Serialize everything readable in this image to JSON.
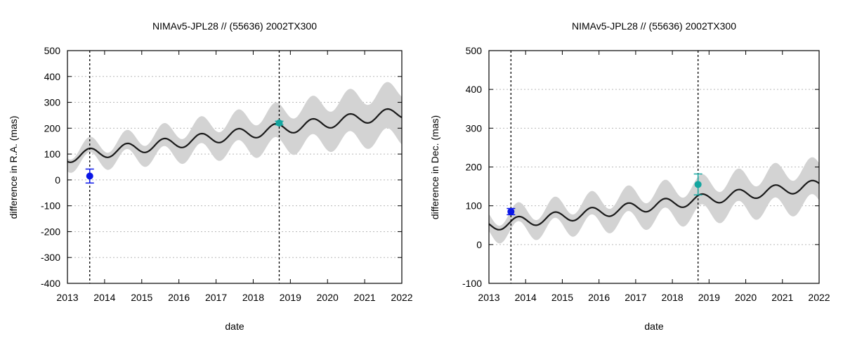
{
  "chart_data": [
    {
      "type": "line",
      "title": "NIMAv5-JPL28 // (55636) 2002TX300",
      "xlabel": "date",
      "ylabel": "difference in R.A. (mas)",
      "xlim": [
        2013,
        2022
      ],
      "ylim": [
        -400,
        500
      ],
      "xticks": [
        2013,
        2014,
        2015,
        2016,
        2017,
        2018,
        2019,
        2020,
        2021,
        2022
      ],
      "yticks": [
        -400,
        -300,
        -200,
        -100,
        0,
        100,
        200,
        300,
        400,
        500
      ],
      "grid": "horizontal-dotted",
      "vlines": [
        2013.6,
        2018.7
      ],
      "series": [
        {
          "name": "NIMAv5 - JPL28 difference",
          "style": "line",
          "color": "#1a1a1a",
          "model": {
            "offset": 100,
            "trend": 19,
            "t0": 2013.6,
            "amplitude": 22,
            "period": 1.0,
            "phase_peak": 2013.6
          }
        },
        {
          "name": "uncertainty band",
          "style": "band",
          "color": "#d3d3d3",
          "model": {
            "halfwidth_start": 25,
            "halfwidth_end": 92,
            "amplitude_scale": 1.7
          }
        }
      ],
      "points": [
        {
          "x": 2013.6,
          "y": 15,
          "err": 27,
          "color": "#0a16e6"
        },
        {
          "x": 2018.7,
          "y": 220,
          "err": 7,
          "color": "#14a6a0"
        }
      ]
    },
    {
      "type": "line",
      "title": "NIMAv5-JPL28 // (55636) 2002TX300",
      "xlabel": "date",
      "ylabel": "difference in Dec. (mas)",
      "xlim": [
        2013,
        2022
      ],
      "ylim": [
        -100,
        500
      ],
      "xticks": [
        2013,
        2014,
        2015,
        2016,
        2017,
        2018,
        2019,
        2020,
        2021,
        2022
      ],
      "yticks": [
        -100,
        0,
        100,
        200,
        300,
        400,
        500
      ],
      "grid": "horizontal-dotted",
      "vlines": [
        2013.6,
        2018.7
      ],
      "series": [
        {
          "name": "NIMAv5 - JPL28 difference",
          "style": "line",
          "color": "#1a1a1a",
          "model": {
            "offset": 50,
            "trend": 11.6,
            "t0": 2013.1,
            "amplitude": 14,
            "period": 1.0,
            "phase_peak": 2013.8
          }
        },
        {
          "name": "uncertainty band",
          "style": "band",
          "color": "#d3d3d3",
          "model": {
            "halfwidth_start": 22,
            "halfwidth_end": 48,
            "amplitude_scale": 1.9
          }
        }
      ],
      "points": [
        {
          "x": 2013.6,
          "y": 85,
          "err": 8,
          "color": "#0a16e6"
        },
        {
          "x": 2018.7,
          "y": 155,
          "err": 27,
          "color": "#14a6a0"
        }
      ]
    }
  ]
}
